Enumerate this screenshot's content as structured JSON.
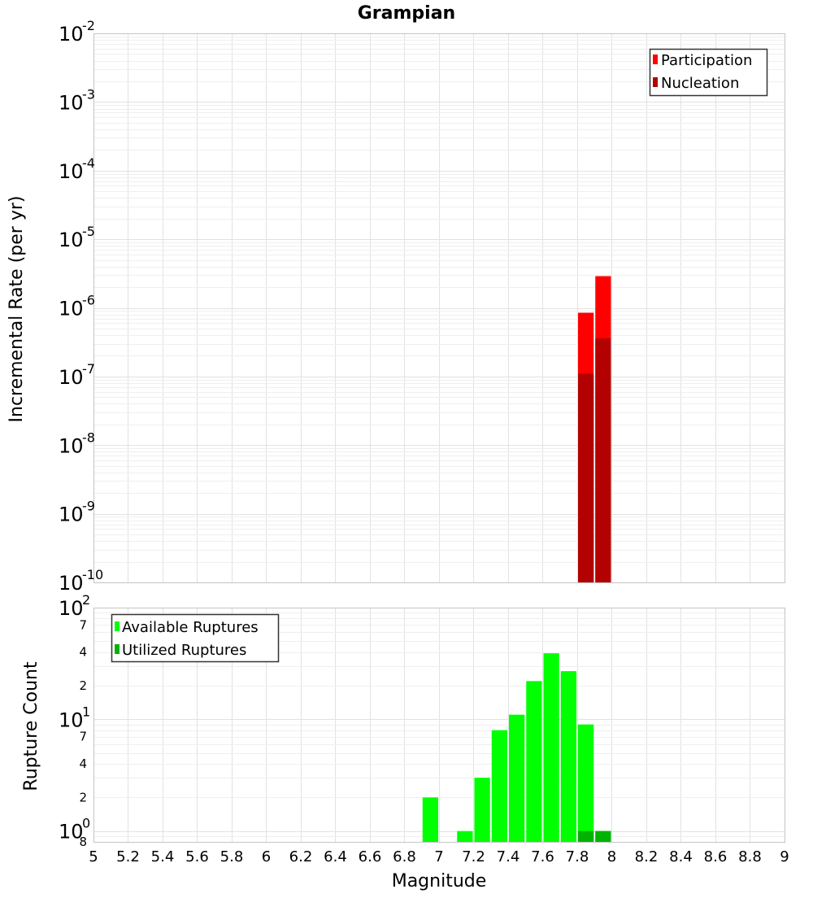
{
  "chart_data": [
    {
      "type": "bar",
      "title": "Grampian",
      "xlabel": "Magnitude",
      "ylabel": "Incremental Rate (per yr)",
      "xlim": [
        5,
        9
      ],
      "ylim_log10": [
        -10,
        -2
      ],
      "yscale": "log",
      "ytick_exponents": [
        "-10",
        "-9",
        "-8",
        "-7",
        "-6",
        "-5",
        "-4",
        "-3",
        "-2"
      ],
      "bin_width": 0.1,
      "legend": {
        "position": "top-right",
        "entries": [
          "Participation",
          "Nucleation"
        ]
      },
      "series": [
        {
          "name": "Participation",
          "color": "#ff0000",
          "x": [
            7.85,
            7.95
          ],
          "values": [
            8.5e-07,
            2.9e-06
          ]
        },
        {
          "name": "Nucleation",
          "color": "#b30000",
          "x": [
            7.85,
            7.95
          ],
          "values": [
            1.1e-07,
            3.6e-07
          ]
        }
      ]
    },
    {
      "type": "bar",
      "xlabel": "Magnitude",
      "ylabel": "Rupture Count",
      "xlim": [
        5,
        9
      ],
      "yscale": "log",
      "ylim": [
        0.8,
        100
      ],
      "xtick_labels": [
        "5",
        "5.2",
        "5.4",
        "5.6",
        "5.8",
        "6",
        "6.2",
        "6.4",
        "6.6",
        "6.8",
        "7",
        "7.2",
        "7.4",
        "7.6",
        "7.8",
        "8",
        "8.2",
        "8.4",
        "8.6",
        "8.8",
        "9"
      ],
      "major_ticks": [
        {
          "base": "10",
          "exp": "0",
          "value": 1
        },
        {
          "base": "10",
          "exp": "1",
          "value": 10
        },
        {
          "base": "10",
          "exp": "2",
          "value": 100
        }
      ],
      "minor_labels": [
        {
          "label": "8",
          "value": 0.8
        },
        {
          "label": "2",
          "value": 2
        },
        {
          "label": "4",
          "value": 4
        },
        {
          "label": "7",
          "value": 7
        },
        {
          "label": "2",
          "value": 20
        },
        {
          "label": "4",
          "value": 40
        },
        {
          "label": "7",
          "value": 70
        }
      ],
      "bin_width": 0.1,
      "legend": {
        "position": "top-left",
        "entries": [
          "Available Ruptures",
          "Utilized Ruptures"
        ]
      },
      "series": [
        {
          "name": "Available Ruptures",
          "color": "#00ff00",
          "x": [
            6.95,
            7.15,
            7.25,
            7.35,
            7.45,
            7.55,
            7.65,
            7.75,
            7.85,
            7.95
          ],
          "values": [
            2,
            1,
            3,
            8,
            11,
            22,
            39,
            27,
            9,
            1
          ]
        },
        {
          "name": "Utilized Ruptures",
          "color": "#00b300",
          "x": [
            7.85,
            7.95
          ],
          "values": [
            1,
            1
          ]
        }
      ]
    }
  ]
}
